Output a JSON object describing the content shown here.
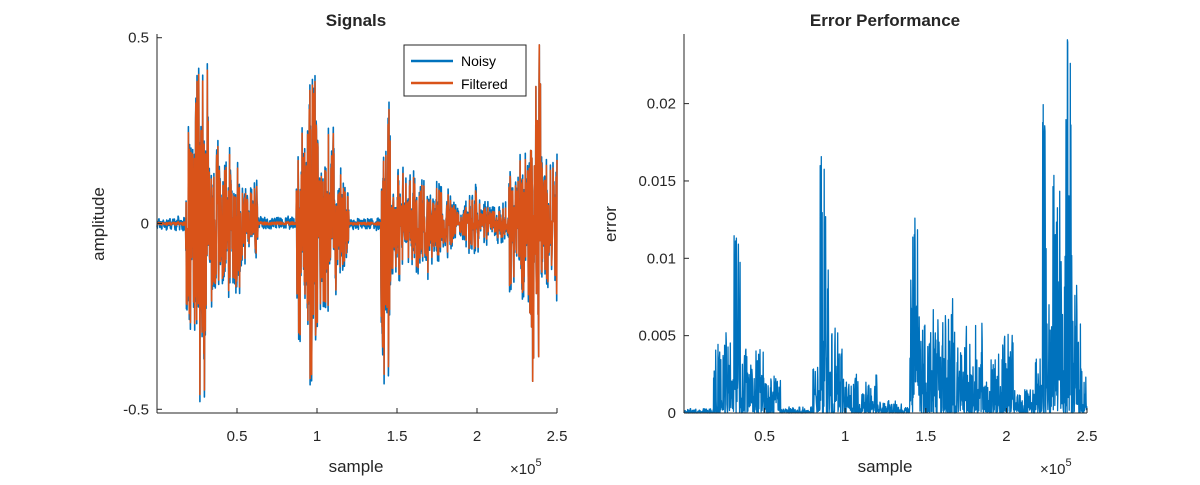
{
  "chart_data": [
    {
      "type": "line",
      "title": "Signals",
      "xlabel": "sample",
      "ylabel": "amplitude",
      "x_exponent_label": "×10",
      "x_exponent": "5",
      "xlim": [
        0,
        250000
      ],
      "ylim": [
        -0.51,
        0.51
      ],
      "x_ticks": [
        50000,
        100000,
        150000,
        200000,
        250000
      ],
      "x_tick_labels": [
        "0.5",
        "1",
        "1.5",
        "2",
        "2.5"
      ],
      "y_ticks": [
        -0.5,
        0,
        0.5
      ],
      "y_tick_labels": [
        "-0.5",
        "0",
        "0.5"
      ],
      "grid": false,
      "legend_position": "top-right",
      "series": [
        {
          "name": "Noisy",
          "color": "#0072BD",
          "bursts": [
            [
              0,
              18000,
              0.02
            ],
            [
              18000,
              24000,
              0.32
            ],
            [
              24000,
              32000,
              0.5
            ],
            [
              32000,
              40000,
              0.28
            ],
            [
              40000,
              52000,
              0.22
            ],
            [
              52000,
              63000,
              0.14
            ],
            [
              63000,
              87000,
              0.02
            ],
            [
              87000,
              94000,
              0.35
            ],
            [
              94000,
              101000,
              0.5
            ],
            [
              101000,
              112000,
              0.3
            ],
            [
              112000,
              120000,
              0.16
            ],
            [
              120000,
              140000,
              0.02
            ],
            [
              140000,
              146000,
              0.5
            ],
            [
              146000,
              155000,
              0.18
            ],
            [
              155000,
              170000,
              0.16
            ],
            [
              170000,
              186000,
              0.12
            ],
            [
              186000,
              194000,
              0.07
            ],
            [
              194000,
              202000,
              0.12
            ],
            [
              202000,
              220000,
              0.07
            ],
            [
              220000,
              233000,
              0.22
            ],
            [
              233000,
              240000,
              0.5
            ],
            [
              240000,
              250000,
              0.22
            ]
          ]
        },
        {
          "name": "Filtered",
          "color": "#D95319",
          "bursts": [
            [
              0,
              18000,
              0.005
            ],
            [
              18000,
              24000,
              0.3
            ],
            [
              24000,
              32000,
              0.48
            ],
            [
              32000,
              40000,
              0.26
            ],
            [
              40000,
              52000,
              0.2
            ],
            [
              52000,
              63000,
              0.12
            ],
            [
              63000,
              87000,
              0.005
            ],
            [
              87000,
              94000,
              0.33
            ],
            [
              94000,
              101000,
              0.48
            ],
            [
              101000,
              112000,
              0.28
            ],
            [
              112000,
              120000,
              0.14
            ],
            [
              120000,
              140000,
              0.005
            ],
            [
              140000,
              146000,
              0.47
            ],
            [
              146000,
              155000,
              0.16
            ],
            [
              155000,
              170000,
              0.14
            ],
            [
              170000,
              186000,
              0.1
            ],
            [
              186000,
              194000,
              0.05
            ],
            [
              194000,
              202000,
              0.1
            ],
            [
              202000,
              220000,
              0.05
            ],
            [
              220000,
              233000,
              0.2
            ],
            [
              233000,
              240000,
              0.5
            ],
            [
              240000,
              250000,
              0.2
            ]
          ]
        }
      ]
    },
    {
      "type": "line",
      "title": "Error Performance",
      "xlabel": "sample",
      "ylabel": "error",
      "x_exponent_label": "×10",
      "x_exponent": "5",
      "xlim": [
        0,
        250000
      ],
      "ylim": [
        0,
        0.0245
      ],
      "x_ticks": [
        50000,
        100000,
        150000,
        200000,
        250000
      ],
      "x_tick_labels": [
        "0.5",
        "1",
        "1.5",
        "2",
        "2.5"
      ],
      "y_ticks": [
        0,
        0.005,
        0.01,
        0.015,
        0.02
      ],
      "y_tick_labels": [
        "0",
        "0.005",
        "0.01",
        "0.015",
        "0.02"
      ],
      "grid": false,
      "series": [
        {
          "color": "#0072BD",
          "bursts": [
            [
              0,
              18000,
              0.0003
            ],
            [
              18000,
              25000,
              0.0048
            ],
            [
              25000,
              30000,
              0.0058
            ],
            [
              30000,
              35000,
              0.0128
            ],
            [
              35000,
              52000,
              0.0045
            ],
            [
              52000,
              60000,
              0.0025
            ],
            [
              60000,
              80000,
              0.0004
            ],
            [
              80000,
              84000,
              0.0035
            ],
            [
              84000,
              87000,
              0.0195
            ],
            [
              87000,
              90000,
              0.013
            ],
            [
              90000,
              100000,
              0.0055
            ],
            [
              100000,
              120000,
              0.0025
            ],
            [
              120000,
              135000,
              0.0008
            ],
            [
              135000,
              140000,
              0.0004
            ],
            [
              140000,
              146000,
              0.0135
            ],
            [
              146000,
              155000,
              0.0085
            ],
            [
              155000,
              170000,
              0.0075
            ],
            [
              170000,
              186000,
              0.0058
            ],
            [
              186000,
              195000,
              0.0035
            ],
            [
              195000,
              205000,
              0.0052
            ],
            [
              205000,
              218000,
              0.0015
            ],
            [
              218000,
              222000,
              0.004
            ],
            [
              222000,
              227000,
              0.0245
            ],
            [
              227000,
              235000,
              0.0175
            ],
            [
              235000,
              241000,
              0.0245
            ],
            [
              241000,
              246000,
              0.0085
            ],
            [
              246000,
              250000,
              0.0032
            ]
          ]
        }
      ]
    }
  ]
}
